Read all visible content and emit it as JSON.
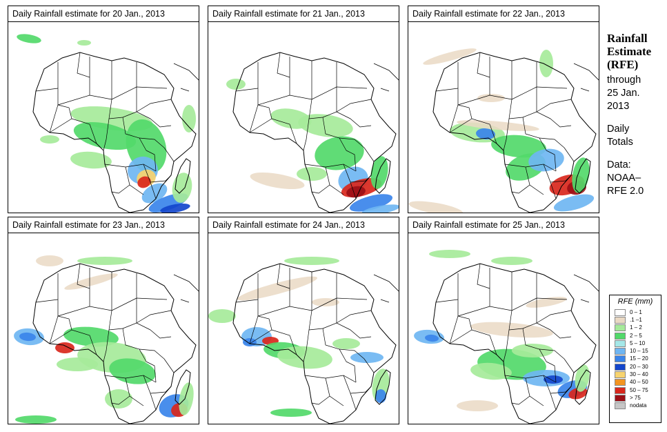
{
  "panels": [
    {
      "title": "Daily Rainfall estimate for  20 Jan., 2013",
      "pattern": 0
    },
    {
      "title": "Daily Rainfall estimate for  21 Jan., 2013",
      "pattern": 1
    },
    {
      "title": "Daily Rainfall estimate for  22 Jan., 2013",
      "pattern": 2
    },
    {
      "title": "Daily Rainfall estimate for  23 Jan., 2013",
      "pattern": 3
    },
    {
      "title": "Daily Rainfall estimate for  24 Jan., 2013",
      "pattern": 4
    },
    {
      "title": "Daily Rainfall estimate for  25 Jan., 2013",
      "pattern": 5
    }
  ],
  "sidebar": {
    "title_line1": "Rainfall",
    "title_line2": "Estimate",
    "title_line3": "(RFE)",
    "through": "through",
    "date_line1": "25 Jan.",
    "date_line2": "2013",
    "daily_line1": "Daily",
    "daily_line2": "Totals",
    "data_line1": "Data:",
    "data_line2": "NOAA–",
    "data_line3": "RFE 2.0"
  },
  "legend": {
    "title": "RFE (mm)",
    "items": [
      {
        "label": "0 – 1",
        "color": "#ffffff"
      },
      {
        "label": ".1 –1",
        "color": "#ead9c4"
      },
      {
        "label": "1 – 2",
        "color": "#a6ea9a"
      },
      {
        "label": "2 – 5",
        "color": "#52d96a"
      },
      {
        "label": "5 – 10",
        "color": "#a5e8e8"
      },
      {
        "label": "10 – 15",
        "color": "#6fb6f2"
      },
      {
        "label": "15 – 20",
        "color": "#3a84ea"
      },
      {
        "label": "20 – 30",
        "color": "#1446cc"
      },
      {
        "label": "30 – 40",
        "color": "#f7d36e"
      },
      {
        "label": "40 – 50",
        "color": "#f39420"
      },
      {
        "label": "50 – 75",
        "color": "#d9271c"
      },
      {
        "label": "> 75",
        "color": "#9c0f16"
      },
      {
        "label": "nodata",
        "color": "#c6c6c6"
      }
    ]
  }
}
